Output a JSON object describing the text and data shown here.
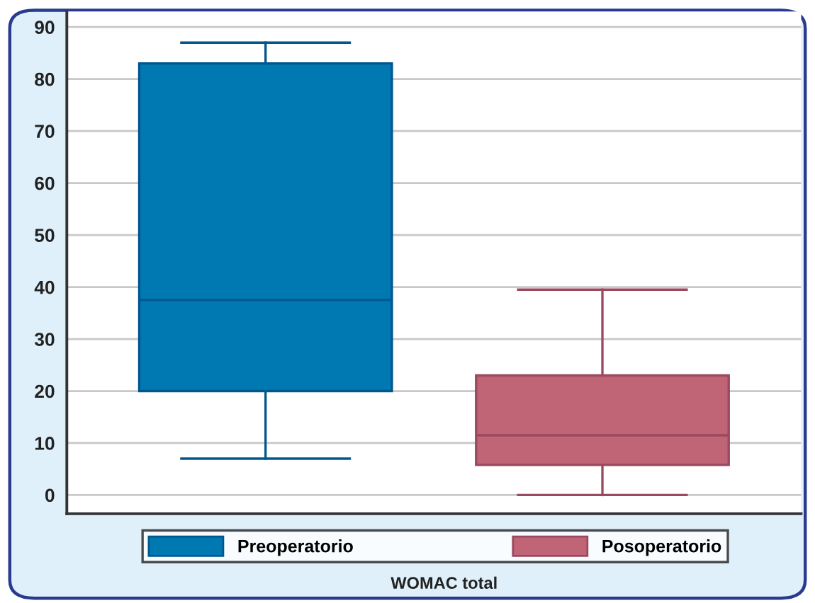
{
  "chart_data": {
    "type": "box",
    "xlabel": "WOMAC total",
    "categories": [
      null,
      null
    ],
    "series": [
      {
        "name": "Preoperatorio",
        "color": "#0079b2",
        "boxes": [
          {
            "low": 7,
            "q1": 20,
            "median": 37.5,
            "q3": 83,
            "high": 87
          },
          null
        ]
      },
      {
        "name": "Posoperatorio",
        "color": "#c06576",
        "boxes": [
          null,
          {
            "low": 0,
            "q1": 5.8,
            "median": 11.5,
            "q3": 23,
            "high": 39.5
          }
        ]
      }
    ],
    "ylim": [
      -3.6,
      93
    ],
    "yticks": [
      0,
      10,
      20,
      30,
      40,
      50,
      60,
      70,
      80,
      90
    ],
    "grid": "y",
    "legend": "bottom"
  }
}
